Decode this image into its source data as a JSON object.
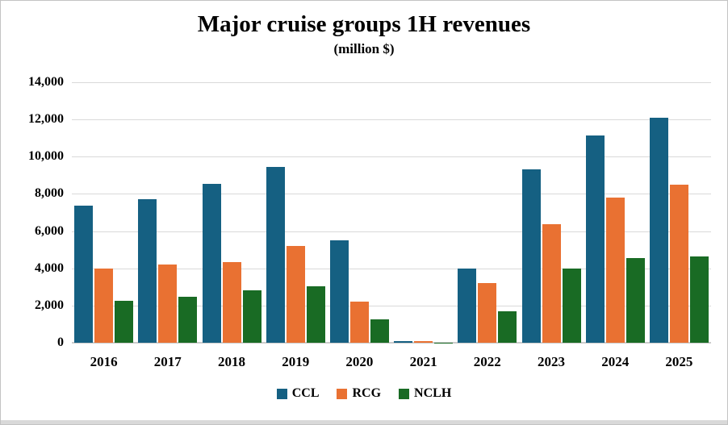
{
  "window": {
    "background": "#ffffff",
    "border_color": "#c3c3c3",
    "bottom_strip_color": "#d9d9d9"
  },
  "chart_data": {
    "type": "bar",
    "title": "Major cruise groups 1H revenues",
    "subtitle": "(million $)",
    "categories": [
      "2016",
      "2017",
      "2018",
      "2019",
      "2020",
      "2021",
      "2022",
      "2023",
      "2024",
      "2025"
    ],
    "series": [
      {
        "name": "CCL",
        "color": "#156082",
        "values": [
          7350,
          7730,
          8560,
          9470,
          5500,
          80,
          4000,
          9340,
          11150,
          12100
        ]
      },
      {
        "name": "RCG",
        "color": "#E97132",
        "values": [
          3980,
          4190,
          4340,
          5210,
          2210,
          90,
          3200,
          6380,
          7800,
          8500
        ]
      },
      {
        "name": "NCLH",
        "color": "#196B24",
        "values": [
          2260,
          2460,
          2810,
          3030,
          1250,
          10,
          1680,
          3980,
          4550,
          4650
        ]
      }
    ],
    "xlabel": "",
    "ylabel": "",
    "ylim": [
      0,
      14000
    ],
    "ytick_step": 2000,
    "ytick_labels": [
      "0",
      "2,000",
      "4,000",
      "6,000",
      "8,000",
      "10,000",
      "12,000",
      "14,000"
    ],
    "grid": "horizontal",
    "gridline_color": "#d9d9d9",
    "axis_line_color": "#cccccc",
    "legend_position": "bottom"
  }
}
